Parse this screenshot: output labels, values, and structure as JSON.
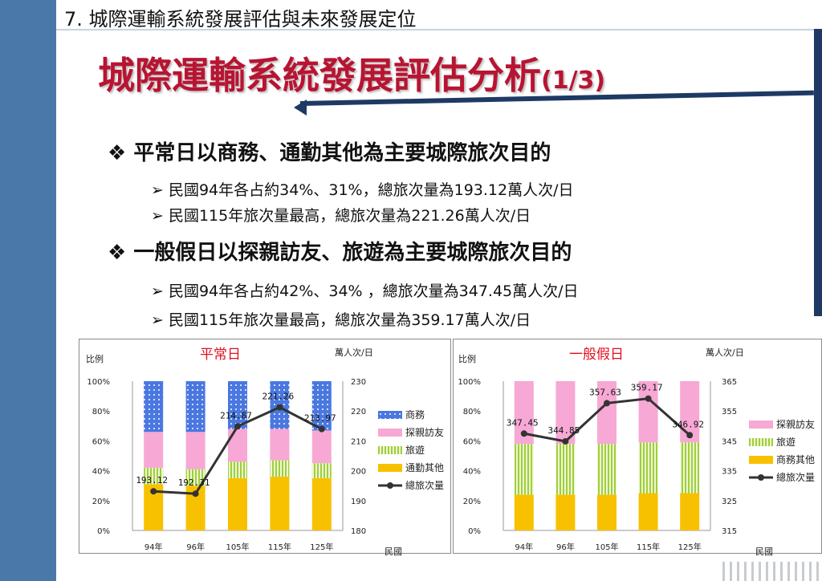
{
  "header": {
    "title": "7. 城際運輸系統發展評估與未來發展定位"
  },
  "title": {
    "main": "城際運輸系統發展評估分析",
    "suffix": "(1/3)"
  },
  "bullets": [
    {
      "text": "平常日以商務、通勤其他為主要城際旅次目的",
      "subs": [
        "民國94年各占約34%、31%，總旅次量為193.12萬人次/日",
        "民國115年旅次量最高，總旅次量為221.26萬人次/日"
      ]
    },
    {
      "text": "一般假日以探親訪友、旅遊為主要城際旅次目的",
      "subs": [
        "民國94年各占約42%、34% ，總旅次量為347.45萬人次/日",
        "民國115年旅次量最高，總旅次量為359.17萬人次/日"
      ]
    }
  ],
  "icons": {
    "bullet": "diamond-bullet-icon",
    "sub": "arrow-bullet-icon"
  },
  "colors": {
    "business": "#4a78e0",
    "visit": "#f7a8d4",
    "tour": "#c9e58a",
    "commute": "#f7c100",
    "line": "#333333",
    "title": "#b81432"
  },
  "chart_data": [
    {
      "type": "bar",
      "title": "平常日",
      "ylabel_left": "比例",
      "ylabel_right": "萬人次/日",
      "xlabel": "民國",
      "categories": [
        "94年",
        "96年",
        "105年",
        "115年",
        "125年"
      ],
      "left_ticks": [
        "0%",
        "20%",
        "40%",
        "60%",
        "80%",
        "100%"
      ],
      "right_ticks": [
        "180",
        "190",
        "200",
        "210",
        "220",
        "230"
      ],
      "ylim_right": [
        180,
        230
      ],
      "stacked_percent": true,
      "series": [
        {
          "name": "通勤其他",
          "color": "#f7c100",
          "values": [
            31,
            30,
            35,
            36,
            35
          ]
        },
        {
          "name": "旅遊",
          "color": "#c9e58a",
          "values": [
            11,
            11,
            11,
            11,
            10
          ]
        },
        {
          "name": "探親訪友",
          "color": "#f7a8d4",
          "values": [
            24,
            25,
            22,
            21,
            22
          ]
        },
        {
          "name": "商務",
          "color": "#4a78e0",
          "values": [
            34,
            34,
            32,
            32,
            33
          ]
        }
      ],
      "legend_order": [
        "商務",
        "探親訪友",
        "旅遊",
        "通勤其他",
        "總旅次量"
      ],
      "line": {
        "name": "總旅次量",
        "values": [
          193.12,
          192.31,
          214.87,
          221.26,
          213.97
        ],
        "labels": [
          "193.12",
          "192.31",
          "214.87",
          "221.26",
          "213.97"
        ]
      }
    },
    {
      "type": "bar",
      "title": "一般假日",
      "ylabel_left": "比例",
      "ylabel_right": "萬人次/日",
      "xlabel": "民國",
      "categories": [
        "94年",
        "96年",
        "105年",
        "115年",
        "125年"
      ],
      "left_ticks": [
        "0%",
        "20%",
        "40%",
        "60%",
        "80%",
        "100%"
      ],
      "right_ticks": [
        "315",
        "325",
        "335",
        "345",
        "355",
        "365"
      ],
      "ylim_right": [
        315,
        365
      ],
      "stacked_percent": true,
      "series": [
        {
          "name": "商務其他",
          "color": "#f7c100",
          "values": [
            24,
            24,
            24,
            25,
            25
          ]
        },
        {
          "name": "旅遊",
          "color": "#c9e58a",
          "values": [
            34,
            34,
            34,
            34,
            34
          ]
        },
        {
          "name": "探親訪友",
          "color": "#f7a8d4",
          "values": [
            42,
            42,
            42,
            41,
            41
          ]
        }
      ],
      "legend_order": [
        "探親訪友",
        "旅遊",
        "商務其他",
        "總旅次量"
      ],
      "line": {
        "name": "總旅次量",
        "values": [
          347.45,
          344.85,
          357.63,
          359.17,
          346.92
        ],
        "labels": [
          "347.45",
          "344.85",
          "357.63",
          "359.17",
          "346.92"
        ]
      }
    }
  ]
}
